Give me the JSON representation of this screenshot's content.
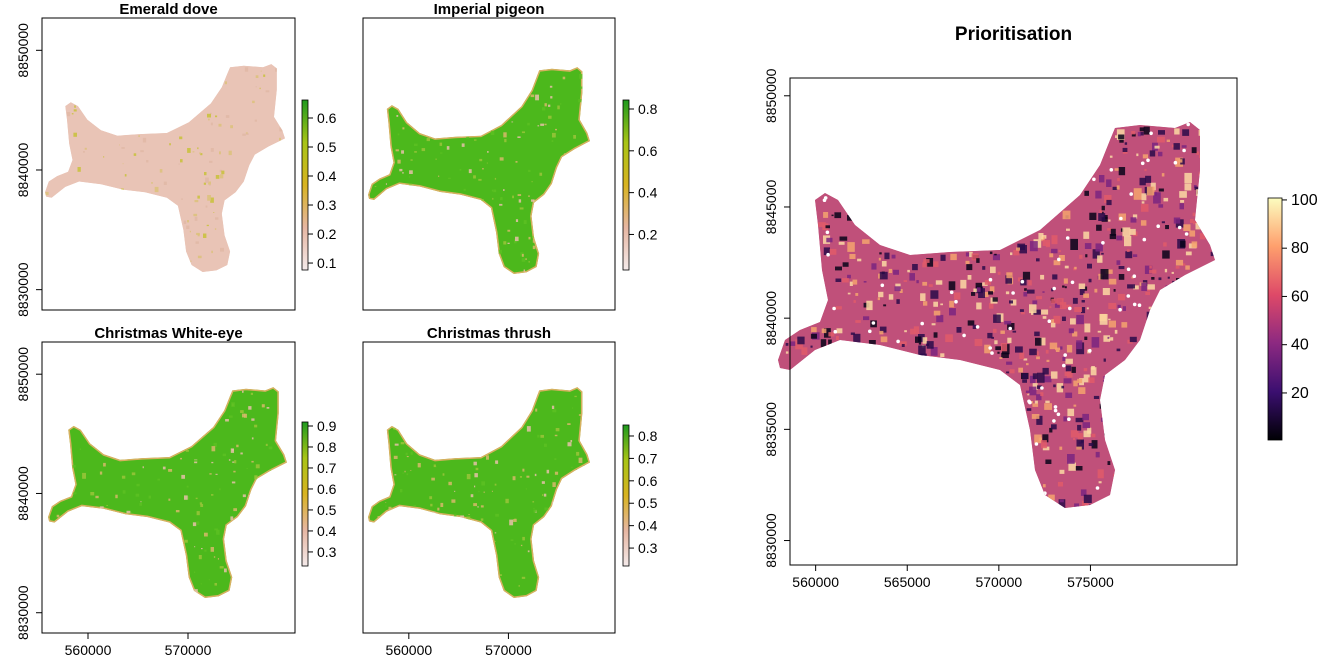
{
  "chart_data": [
    {
      "type": "raster-map",
      "title": "Emerald dove",
      "ylim": [
        8828300,
        8852700
      ],
      "yticks": [
        8830000,
        8840000,
        8850000
      ],
      "clim": [
        0.076,
        0.662
      ],
      "cticks": [
        0.1,
        0.2,
        0.3,
        0.4,
        0.5,
        0.6
      ],
      "colormap": [
        "#f4eaea",
        "#e6b6a2",
        "#d8b321",
        "#a8c416",
        "#1f9a1f"
      ]
    },
    {
      "type": "raster-map",
      "title": "Imperial pigeon",
      "clim": [
        0.03,
        0.843
      ],
      "cticks": [
        0.2,
        0.4,
        0.6,
        0.8
      ],
      "colormap": [
        "#f4eaea",
        "#e6b6a2",
        "#d8b321",
        "#a8c416",
        "#1f9a1f"
      ]
    },
    {
      "type": "raster-map",
      "title": "Christmas White-eye",
      "xlim": [
        555400,
        580700
      ],
      "xticks": [
        560000,
        570000
      ],
      "ylim": [
        8828300,
        8852700
      ],
      "yticks": [
        8830000,
        8840000,
        8850000
      ],
      "clim": [
        0.233,
        0.919
      ],
      "cticks": [
        0.3,
        0.4,
        0.5,
        0.6,
        0.7,
        0.8,
        0.9
      ],
      "colormap": [
        "#f4eaea",
        "#e6b6a2",
        "#d8b321",
        "#a8c416",
        "#1f9a1f"
      ]
    },
    {
      "type": "raster-map",
      "title": "Christmas thrush",
      "xlim": [
        555400,
        580700
      ],
      "xticks": [
        560000,
        570000
      ],
      "clim": [
        0.22,
        0.849
      ],
      "cticks": [
        0.3,
        0.4,
        0.5,
        0.6,
        0.7,
        0.8
      ],
      "colormap": [
        "#f4eaea",
        "#e6b6a2",
        "#d8b321",
        "#a8c416",
        "#1f9a1f"
      ]
    },
    {
      "type": "raster-map",
      "title": "Prioritisation",
      "xlim": [
        558600,
        583000
      ],
      "xticks": [
        560000,
        565000,
        570000,
        575000
      ],
      "ylim": [
        8828900,
        8850800
      ],
      "yticks": [
        8830000,
        8835000,
        8840000,
        8845000,
        8850000
      ],
      "clim": [
        0.5,
        100.8
      ],
      "cticks": [
        20,
        40,
        60,
        80,
        100
      ],
      "colormap": [
        "#000004",
        "#3b0f70",
        "#8c2981",
        "#de4968",
        "#fe9f6d",
        "#fcfdbf"
      ]
    }
  ]
}
